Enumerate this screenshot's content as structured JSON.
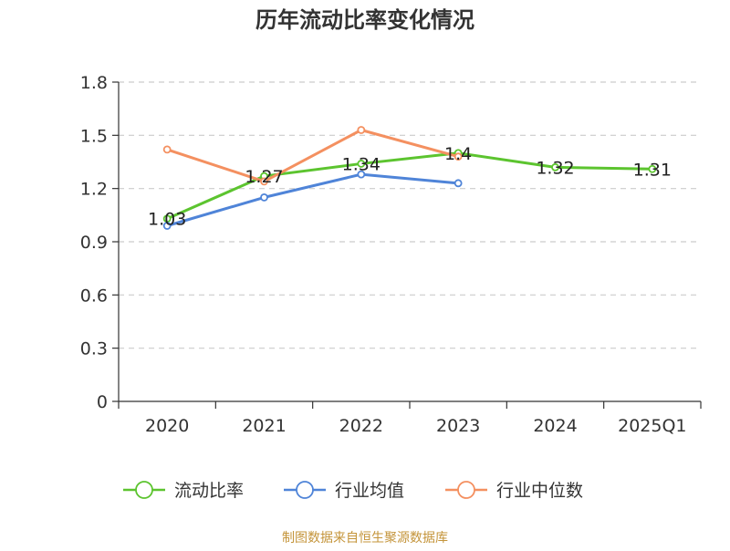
{
  "chart_data": {
    "type": "line",
    "title": "历年流动比率变化情况",
    "categories": [
      "2020",
      "2021",
      "2022",
      "2023",
      "2024",
      "2025Q1"
    ],
    "ylim": [
      0,
      1.8
    ],
    "yticks": [
      "0",
      "0.3",
      "0.6",
      "0.9",
      "1.2",
      "1.5",
      "1.8"
    ],
    "grid": true,
    "legend_position": "bottom",
    "series": [
      {
        "name": "流动比率",
        "color": "#5cc42f",
        "values": [
          1.03,
          1.27,
          1.34,
          1.4,
          1.32,
          1.31
        ],
        "labels": [
          "1.03",
          "1.27",
          "1.34",
          "1.4",
          "1.32",
          "1.31"
        ]
      },
      {
        "name": "行业均值",
        "color": "#4f84d8",
        "values": [
          0.99,
          1.15,
          1.28,
          1.23,
          null,
          null
        ]
      },
      {
        "name": "行业中位数",
        "color": "#f49060",
        "values": [
          1.42,
          1.24,
          1.53,
          1.38,
          null,
          null
        ]
      }
    ]
  },
  "footer": {
    "source": "制图数据来自恒生聚源数据库"
  }
}
